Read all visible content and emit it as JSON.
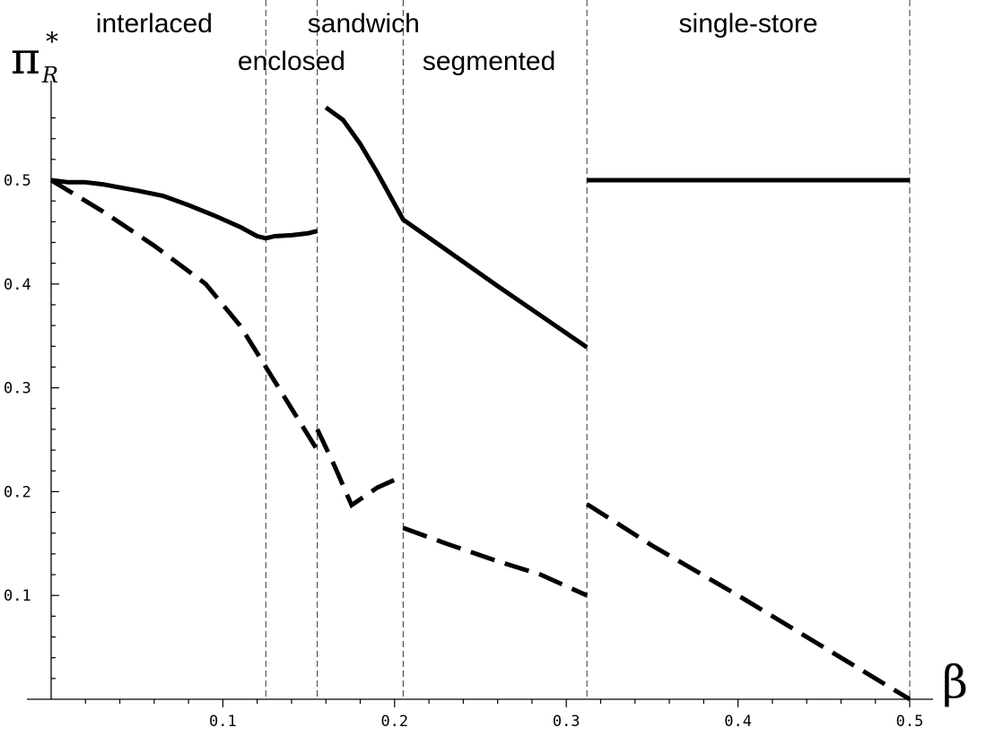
{
  "chart_data": {
    "type": "line",
    "xlabel": "β",
    "ylabel": "π",
    "ylabel_superscript": "*",
    "ylabel_subscript": "R",
    "xlim": [
      0,
      0.5
    ],
    "ylim": [
      0,
      0.6
    ],
    "x_ticks": [
      {
        "value": 0.1,
        "label": "0.1"
      },
      {
        "value": 0.2,
        "label": "0.2"
      },
      {
        "value": 0.3,
        "label": "0.3"
      },
      {
        "value": 0.4,
        "label": "0.4"
      },
      {
        "value": 0.5,
        "label": "0.5"
      }
    ],
    "y_ticks": [
      {
        "value": 0.1,
        "label": "0.1"
      },
      {
        "value": 0.2,
        "label": "0.2"
      },
      {
        "value": 0.3,
        "label": "0.3"
      },
      {
        "value": 0.4,
        "label": "0.4"
      },
      {
        "value": 0.5,
        "label": "0.5"
      }
    ],
    "region_boundaries": [
      0.125,
      0.155,
      0.205,
      0.312,
      0.5
    ],
    "regions": [
      {
        "label": "interlaced",
        "x": 0.06,
        "row": "upper"
      },
      {
        "label": "enclosed",
        "x": 0.14,
        "row": "lower"
      },
      {
        "label": "sandwich",
        "x": 0.182,
        "row": "upper"
      },
      {
        "label": "segmented",
        "x": 0.255,
        "row": "lower"
      },
      {
        "label": "single-store",
        "x": 0.406,
        "row": "upper"
      }
    ],
    "series": [
      {
        "style": "solid",
        "segments": [
          [
            [
              0,
              0.5
            ],
            [
              0.01,
              0.498
            ],
            [
              0.02,
              0.498
            ],
            [
              0.03,
              0.496
            ],
            [
              0.05,
              0.49
            ],
            [
              0.065,
              0.485
            ],
            [
              0.08,
              0.476
            ],
            [
              0.095,
              0.466
            ],
            [
              0.11,
              0.455
            ],
            [
              0.12,
              0.446
            ],
            [
              0.125,
              0.444
            ],
            [
              0.13,
              0.446
            ],
            [
              0.14,
              0.447
            ],
            [
              0.15,
              0.449
            ],
            [
              0.155,
              0.451
            ]
          ],
          [
            [
              0.16,
              0.57
            ],
            [
              0.17,
              0.558
            ],
            [
              0.18,
              0.535
            ],
            [
              0.19,
              0.507
            ],
            [
              0.205,
              0.462
            ],
            [
              0.23,
              0.433
            ],
            [
              0.26,
              0.398
            ],
            [
              0.29,
              0.364
            ],
            [
              0.312,
              0.339
            ]
          ],
          [
            [
              0.312,
              0.5
            ],
            [
              0.5,
              0.5
            ]
          ]
        ]
      },
      {
        "style": "dashed",
        "segments": [
          [
            [
              0,
              0.5
            ],
            [
              0.03,
              0.47
            ],
            [
              0.06,
              0.437
            ],
            [
              0.09,
              0.4
            ],
            [
              0.11,
              0.36
            ],
            [
              0.125,
              0.32
            ],
            [
              0.14,
              0.28
            ],
            [
              0.155,
              0.24
            ]
          ],
          [
            [
              0.155,
              0.26
            ],
            [
              0.165,
              0.225
            ],
            [
              0.175,
              0.187
            ],
            [
              0.19,
              0.204
            ],
            [
              0.205,
              0.215
            ]
          ],
          [
            [
              0.205,
              0.165
            ],
            [
              0.23,
              0.15
            ],
            [
              0.26,
              0.133
            ],
            [
              0.285,
              0.12
            ],
            [
              0.312,
              0.1
            ]
          ],
          [
            [
              0.312,
              0.188
            ],
            [
              0.35,
              0.148
            ],
            [
              0.4,
              0.1
            ],
            [
              0.45,
              0.05
            ],
            [
              0.5,
              0.0
            ]
          ]
        ]
      }
    ]
  }
}
